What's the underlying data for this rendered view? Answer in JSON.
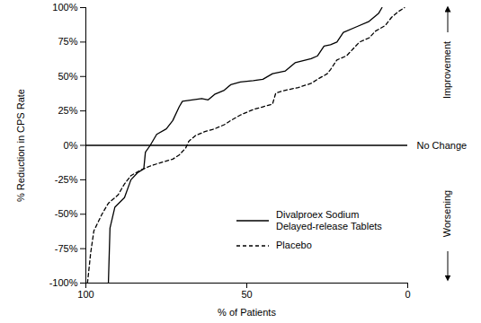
{
  "chart_data": {
    "type": "line",
    "x_label": "% of Patients",
    "y_label": "% Reduction in CPS Rate",
    "xlim": [
      100,
      0
    ],
    "xticks": [
      100,
      50,
      0
    ],
    "ylim": [
      -100,
      100
    ],
    "yticks": [
      {
        "value": 100,
        "label": "100%"
      },
      {
        "value": 75,
        "label": "75%"
      },
      {
        "value": 50,
        "label": "50%"
      },
      {
        "value": 25,
        "label": "25%"
      },
      {
        "value": 0,
        "label": "0%"
      },
      {
        "value": -25,
        "label": "-25%"
      },
      {
        "value": -50,
        "label": "-50%"
      },
      {
        "value": -75,
        "label": "-75%"
      },
      {
        "value": -100,
        "label": "-100%"
      }
    ],
    "legend": "lower right",
    "series": [
      {
        "name": "Divalproex Sodium\nDelayed-release Tablets",
        "color": "#000000",
        "line_style": "solid",
        "x": [
          93,
          92.5,
          91,
          88,
          86,
          84,
          82,
          81.5,
          80,
          78,
          75,
          73,
          71,
          70,
          67,
          64,
          62,
          60,
          57,
          55,
          52,
          48,
          45,
          42,
          38,
          35,
          30,
          28,
          26,
          24,
          22,
          20,
          16,
          12,
          9,
          8
        ],
        "values": [
          -100,
          -60,
          -45,
          -38,
          -25,
          -20,
          -17,
          -5,
          0,
          8,
          12,
          18,
          28,
          32,
          33,
          34,
          33,
          37,
          40,
          44,
          46,
          47,
          48,
          52,
          54,
          60,
          63,
          65,
          72,
          73,
          75,
          82,
          86,
          90,
          96,
          100
        ]
      },
      {
        "name": "Placebo",
        "color": "#000000",
        "line_style": "dashed",
        "x": [
          99.5,
          98.5,
          97.5,
          95,
          93,
          90,
          88,
          86,
          83,
          80,
          76,
          73,
          71,
          69,
          68,
          66,
          63,
          60,
          57,
          55,
          52,
          48,
          45,
          42,
          41,
          38,
          34,
          30,
          28,
          25,
          24,
          22,
          19,
          17,
          15,
          12,
          10,
          7,
          5,
          3,
          1
        ],
        "values": [
          -100,
          -78,
          -62,
          -50,
          -42,
          -36,
          -28,
          -22,
          -18,
          -15,
          -12,
          -10,
          -7,
          -2,
          3,
          7,
          10,
          12,
          15,
          18,
          22,
          26,
          28,
          30,
          38,
          40,
          42,
          45,
          48,
          52,
          55,
          62,
          65,
          70,
          75,
          78,
          83,
          87,
          93,
          97,
          100
        ]
      }
    ],
    "annotations": [
      {
        "text": "No Change",
        "y": 0
      },
      {
        "text": "Improvement",
        "direction": "up"
      },
      {
        "text": "Worsening",
        "direction": "down"
      }
    ]
  }
}
